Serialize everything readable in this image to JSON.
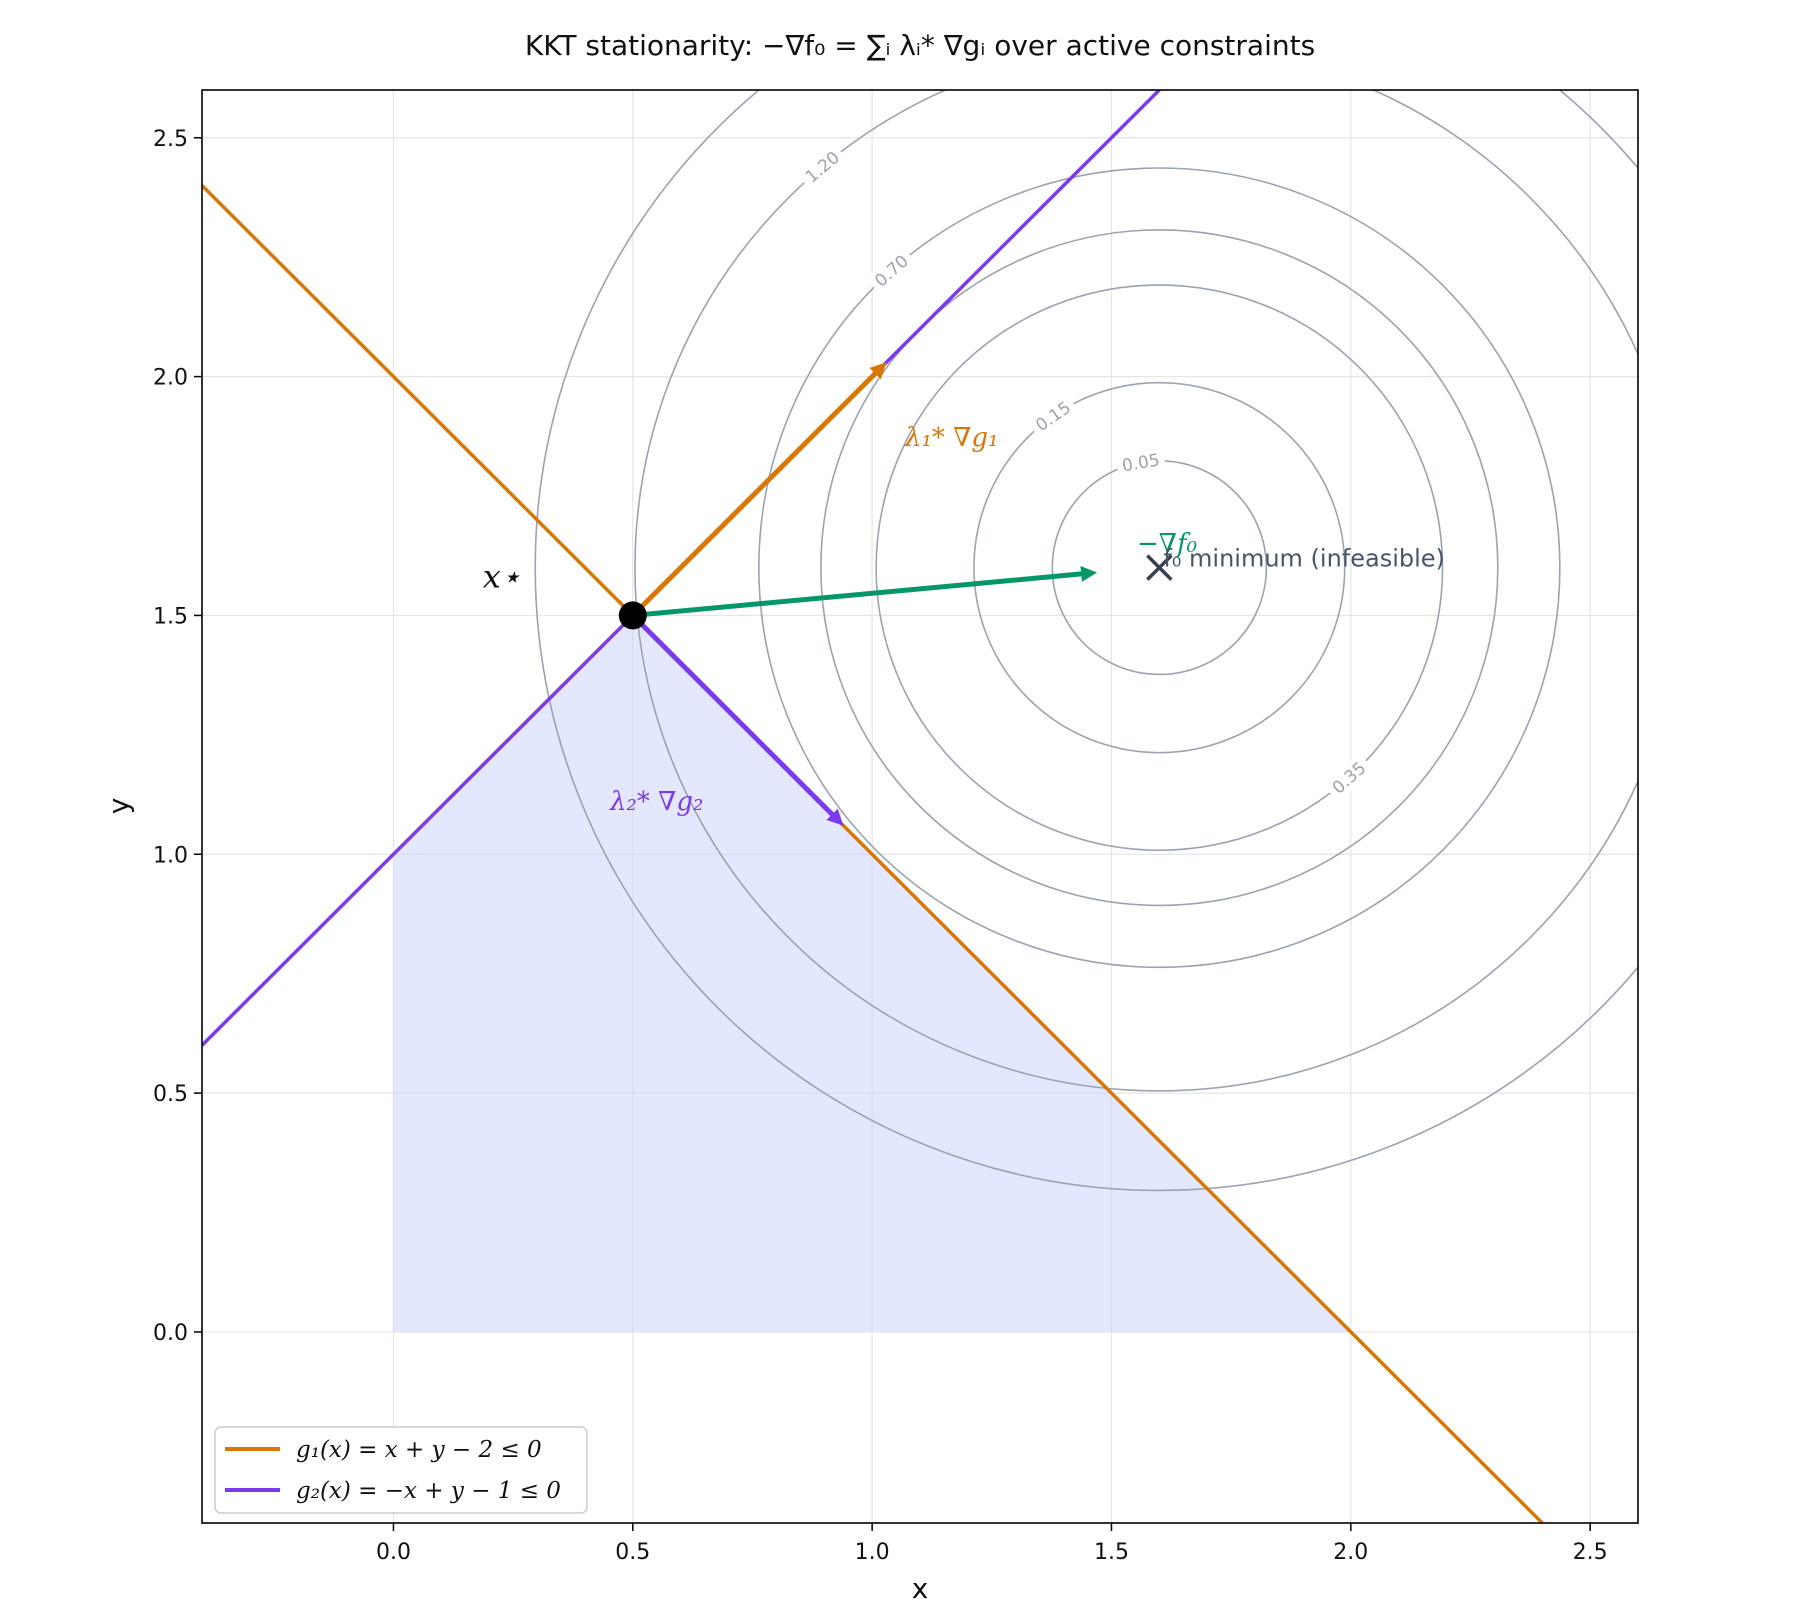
{
  "chart_data": {
    "type": "line",
    "title": "KKT stationarity: −∇f₀ = ∑ᵢ λᵢ* ∇gᵢ over active constraints",
    "xlabel": "x",
    "ylabel": "y",
    "xlim": [
      -0.4,
      2.6
    ],
    "ylim": [
      -0.4,
      2.6
    ],
    "xticks": [
      "0.0",
      "0.5",
      "1.0",
      "1.5",
      "2.0",
      "2.5"
    ],
    "yticks": [
      "0.0",
      "0.5",
      "1.0",
      "1.5",
      "2.0",
      "2.5"
    ],
    "xtick_values": [
      0,
      0.5,
      1,
      1.5,
      2,
      2.5
    ],
    "ytick_values": [
      0,
      0.5,
      1,
      1.5,
      2,
      2.5
    ],
    "grid": true,
    "legend_position": "bottom-left",
    "series": [
      {
        "name": "g₁(x) = x + y − 2 ≤ 0",
        "color": "#d97706",
        "x": [
          -0.4,
          2.4
        ],
        "y": [
          2.4,
          -0.4
        ]
      },
      {
        "name": "g₂(x) = −x + y − 1 ≤ 0",
        "color": "#7c3aed",
        "x": [
          -0.4,
          1.6
        ],
        "y": [
          0.6,
          2.6
        ]
      }
    ],
    "feasible_region": {
      "color": "#c7d2fe",
      "x": [
        0,
        0.5,
        2,
        0
      ],
      "y": [
        1,
        1.5,
        0,
        0
      ]
    },
    "contours": {
      "color": "#9ca3af",
      "center": [
        1.6,
        1.6
      ],
      "levels": [
        {
          "value": 0.05,
          "label": "0.05",
          "radius": 0.2236
        },
        {
          "value": 0.15,
          "label": "0.15",
          "radius": 0.3873
        },
        {
          "value": 0.35,
          "label": "0.35",
          "radius": 0.5916
        },
        {
          "value": 0.5,
          "label": "",
          "radius": 0.7071
        },
        {
          "value": 0.7,
          "label": "0.70",
          "radius": 0.8367
        },
        {
          "value": 1.2,
          "label": "1.20",
          "radius": 1.0954
        },
        {
          "value": 1.7,
          "label": "",
          "radius": 1.3038
        }
      ]
    },
    "points": {
      "optimum": {
        "label": "x⋆",
        "x": 0.5,
        "y": 1.5,
        "color": "#000000"
      },
      "unconstrained_minimum": {
        "label": "f₀ minimum (infeasible)",
        "x": 1.6,
        "y": 1.6,
        "color": "#374151"
      }
    },
    "vectors": [
      {
        "name": "λ₁* ∇g₁",
        "color": "#d97706",
        "from": [
          0.5,
          1.5
        ],
        "to": [
          1.03,
          2.03
        ]
      },
      {
        "name": "λ₂* ∇g₂",
        "color": "#7c3aed",
        "from": [
          0.5,
          1.5
        ],
        "to": [
          0.94,
          1.06
        ]
      },
      {
        "name": "−∇f₀",
        "color": "#059669",
        "from": [
          0.5,
          1.5
        ],
        "to": [
          1.47,
          1.59
        ]
      }
    ]
  }
}
